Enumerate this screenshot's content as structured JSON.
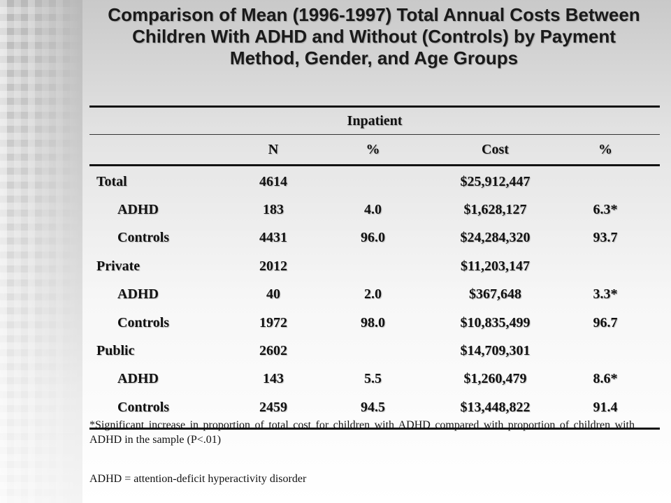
{
  "title": "Comparison of Mean (1996-1997) Total Annual Costs Between Children With ADHD and Without (Controls) by Payment Method, Gender, and Age Groups",
  "table": {
    "group_header": "Inpatient",
    "columns": [
      "",
      "N",
      "%",
      "Cost",
      "%"
    ],
    "rows": [
      {
        "label": "Total",
        "sub": false,
        "n": "4614",
        "pct": "",
        "cost": "$25,912,447",
        "pct2": ""
      },
      {
        "label": "ADHD",
        "sub": true,
        "n": "183",
        "pct": "4.0",
        "cost": "$1,628,127",
        "pct2": "6.3*"
      },
      {
        "label": "Controls",
        "sub": true,
        "n": "4431",
        "pct": "96.0",
        "cost": "$24,284,320",
        "pct2": "93.7"
      },
      {
        "label": "Private",
        "sub": false,
        "n": "2012",
        "pct": "",
        "cost": "$11,203,147",
        "pct2": ""
      },
      {
        "label": "ADHD",
        "sub": true,
        "n": "40",
        "pct": "2.0",
        "cost": "$367,648",
        "pct2": "3.3*"
      },
      {
        "label": "Controls",
        "sub": true,
        "n": "1972",
        "pct": "98.0",
        "cost": "$10,835,499",
        "pct2": "96.7"
      },
      {
        "label": "Public",
        "sub": false,
        "n": "2602",
        "pct": "",
        "cost": "$14,709,301",
        "pct2": ""
      },
      {
        "label": "ADHD",
        "sub": true,
        "n": "143",
        "pct": "5.5",
        "cost": "$1,260,479",
        "pct2": "8.6*"
      },
      {
        "label": "Controls",
        "sub": true,
        "n": "2459",
        "pct": "94.5",
        "cost": "$13,448,822",
        "pct2": "91.4"
      }
    ]
  },
  "footnote": "*Significant increase in proportion of total cost for children with ADHD compared with proportion of children with ADHD in the sample (P<.01)",
  "abbreviation": "ADHD = attention-deficit hyperactivity disorder"
}
